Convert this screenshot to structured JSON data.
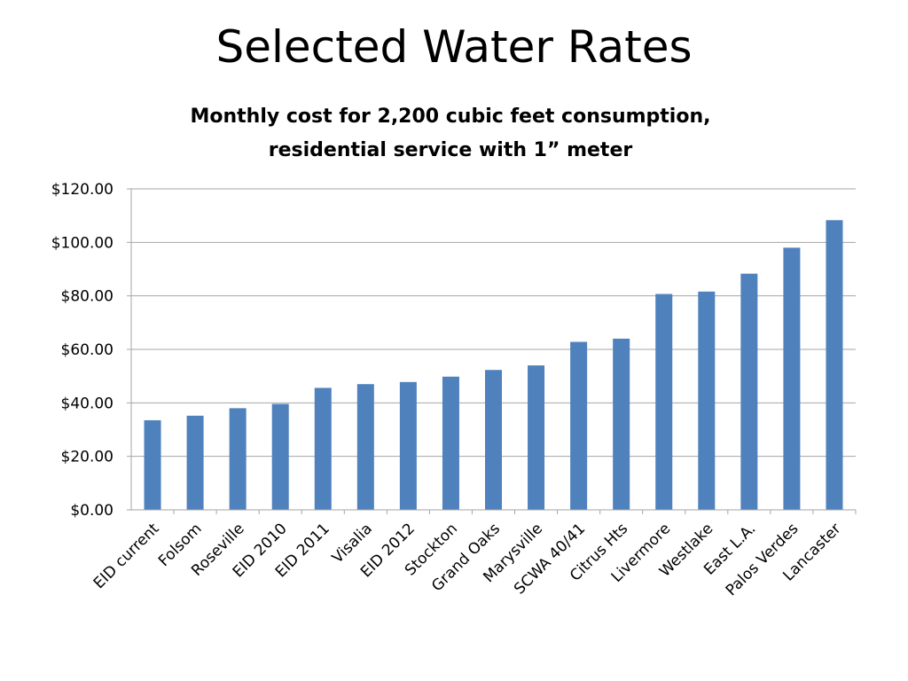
{
  "slide": {
    "title": "Selected Water Rates"
  },
  "chart_data": {
    "type": "bar",
    "title_lines": [
      "Monthly cost for 2,200 cubic feet consumption,",
      "residential service with 1” meter"
    ],
    "categories": [
      "EID current",
      "Folsom",
      "Roseville",
      "EID 2010",
      "EID 2011",
      "Visalia",
      "EID 2012",
      "Stockton",
      "Grand Oaks",
      "Marysville",
      "SCWA 40/41",
      "Citrus Hts",
      "Livermore",
      "Westlake",
      "East L.A.",
      "Palos Verdes",
      "Lancaster"
    ],
    "values": [
      33.5,
      35.2,
      38.0,
      39.6,
      45.6,
      47.0,
      47.8,
      49.8,
      52.3,
      54.0,
      62.8,
      64.0,
      80.7,
      81.6,
      88.3,
      98.0,
      108.3
    ],
    "yticks": [
      "$0.00",
      "$20.00",
      "$40.00",
      "$60.00",
      "$80.00",
      "$100.00",
      "$120.00"
    ],
    "ylim": [
      0,
      120
    ],
    "xlabel": "",
    "ylabel": "",
    "grid": true,
    "bar_color": "#4F81BD",
    "grid_color": "#A6A6A6"
  }
}
